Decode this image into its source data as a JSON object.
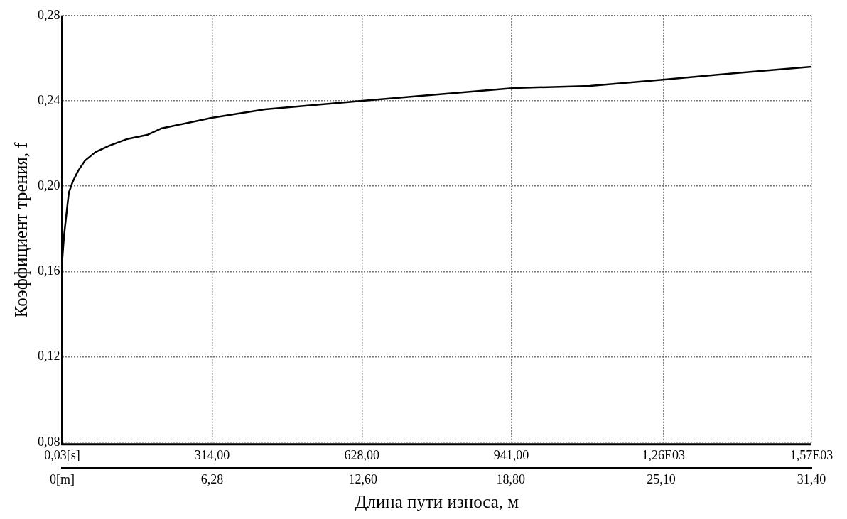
{
  "chart_data": {
    "type": "line",
    "xlabel": "Длина пути износа, м",
    "ylabel": "Коэффициент трения, f",
    "x": [
      0.03,
      4,
      9,
      14,
      22,
      33,
      48,
      70,
      99,
      135,
      178,
      207,
      313,
      425,
      629,
      787,
      947,
      1106,
      1263,
      1411,
      1570
    ],
    "series": [
      {
        "color": "#000000",
        "values": [
          0.165,
          0.177,
          0.187,
          0.197,
          0.202,
          0.207,
          0.212,
          0.216,
          0.219,
          0.222,
          0.224,
          0.227,
          0.232,
          0.236,
          0.24,
          0.243,
          0.246,
          0.247,
          0.25,
          0.253,
          0.256
        ]
      }
    ],
    "xlim": [
      0.03,
      1570
    ],
    "xticks": [
      {
        "value": 0.03,
        "label": "0,03[s]"
      },
      {
        "value": 314,
        "label": "314,00"
      },
      {
        "value": 628,
        "label": "628,00"
      },
      {
        "value": 941,
        "label": "941,00"
      },
      {
        "value": 1260,
        "label": "1,26E03"
      },
      {
        "value": 1570,
        "label": "1,57E03"
      }
    ],
    "x2lim": [
      0,
      31.4
    ],
    "x2ticks": [
      {
        "value": 0,
        "label": "0[m]"
      },
      {
        "value": 6.28,
        "label": "6,28"
      },
      {
        "value": 12.6,
        "label": "12,60"
      },
      {
        "value": 18.8,
        "label": "18,80"
      },
      {
        "value": 25.1,
        "label": "25,10"
      },
      {
        "value": 31.4,
        "label": "31,40"
      }
    ],
    "ylim": [
      0.079,
      0.28
    ],
    "yticks": [
      {
        "value": 0.08,
        "label": "0,08"
      },
      {
        "value": 0.12,
        "label": "0,12"
      },
      {
        "value": 0.16,
        "label": "0,16"
      },
      {
        "value": 0.2,
        "label": "0,20"
      },
      {
        "value": 0.24,
        "label": "0,24"
      },
      {
        "value": 0.28,
        "label": "0,28"
      }
    ],
    "grid": true,
    "marker": "none",
    "line_style": "solid"
  }
}
